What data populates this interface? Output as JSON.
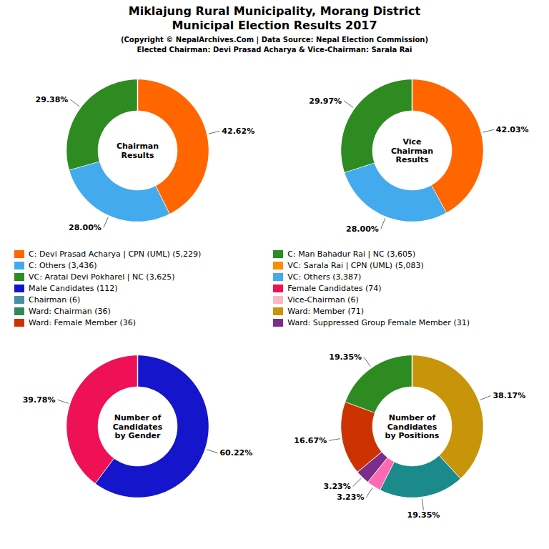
{
  "title": "Miklajung Rural Municipality, Morang District\nMunicipal Election Results 2017",
  "subtitle": "(Copyright © NepalArchives.Com | Data Source: Nepal Election Commission)\nElected Chairman: Devi Prasad Acharya & Vice-Chairman: Sarala Rai",
  "chart_data": [
    {
      "type": "pie",
      "title": "Chairman\nResults",
      "values": [
        42.62,
        28.0,
        29.38
      ],
      "value_labels": [
        "42.62%",
        "28.00%",
        "29.38%"
      ],
      "colors": [
        "#FF6600",
        "#44AAEE",
        "#2D8B22"
      ],
      "data_labels": true
    },
    {
      "type": "pie",
      "title": "Vice\nChairman\nResults",
      "values": [
        42.03,
        28.0,
        29.97
      ],
      "value_labels": [
        "42.03%",
        "28.00%",
        "29.97%"
      ],
      "colors": [
        "#FF6600",
        "#44AAEE",
        "#2D8B22"
      ],
      "data_labels": true
    },
    {
      "type": "legend",
      "series": [
        {
          "name": "C: Devi Prasad Acharya | CPN (UML) (5,229)",
          "color": "#FF6600"
        },
        {
          "name": "C: Others (3,436)",
          "color": "#44AAEE"
        },
        {
          "name": "VC: Aratai Devi Pokharel | NC (3,625)",
          "color": "#2D8B22"
        },
        {
          "name": "Male Candidates (112)",
          "color": "#1515CC"
        },
        {
          "name": "Chairman (6)",
          "color": "#4A90A4"
        },
        {
          "name": "Ward: Chairman (36)",
          "color": "#2E8B57"
        },
        {
          "name": "Ward: Female Member (36)",
          "color": "#CC3300"
        },
        {
          "name": "C: Man Bahadur Rai | NC (3,605)",
          "color": "#2D8B22"
        },
        {
          "name": "VC: Sarala Rai | CPN (UML) (5,083)",
          "color": "#FF8C00"
        },
        {
          "name": "VC: Others (3,387)",
          "color": "#44AAEE"
        },
        {
          "name": "Female Candidates (74)",
          "color": "#EE1155"
        },
        {
          "name": "Vice-Chairman (6)",
          "color": "#FFB6C1"
        },
        {
          "name": "Ward: Member (71)",
          "color": "#C8940A"
        },
        {
          "name": "Ward: Suppressed Group Female Member (31)",
          "color": "#7B2D8B"
        }
      ]
    },
    {
      "type": "pie",
      "title": "Number of\nCandidates\nby Gender",
      "values": [
        60.22,
        39.78
      ],
      "value_labels": [
        "60.22%",
        "39.78%"
      ],
      "colors": [
        "#1515CC",
        "#EE1155"
      ],
      "data_labels": true
    },
    {
      "type": "pie",
      "title": "Number of\nCandidates\nby Positions",
      "values": [
        38.17,
        19.35,
        3.23,
        3.23,
        16.67,
        19.35
      ],
      "value_labels": [
        "38.17%",
        "19.35%",
        "3.23%",
        "3.23%",
        "16.67%",
        "19.35%"
      ],
      "colors": [
        "#C8940A",
        "#1A8A8A",
        "#FF69B4",
        "#7B2D8B",
        "#CC3300",
        "#2D8B22"
      ],
      "data_labels": true
    }
  ]
}
